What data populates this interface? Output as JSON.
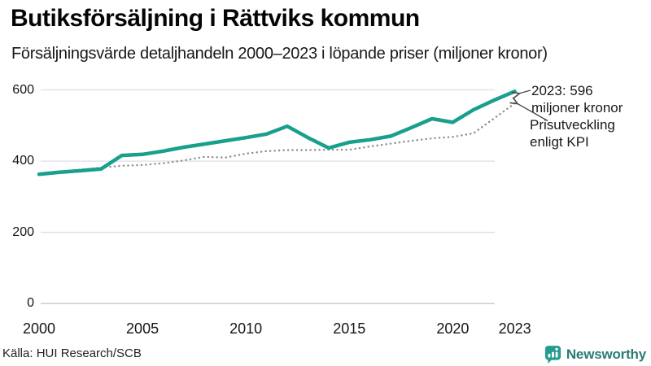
{
  "header": {
    "title": "Butiksförsäljning i Rättviks kommun",
    "subtitle": "Försäljningsvärde detaljhandeln 2000–2023 i löpande priser (miljoner kronor)"
  },
  "chart_data": {
    "type": "line",
    "title": "Butiksförsäljning i Rättviks kommun",
    "subtitle": "Försäljningsvärde detaljhandeln 2000–2023 i löpande priser (miljoner kronor)",
    "x": [
      2000,
      2001,
      2002,
      2003,
      2004,
      2005,
      2006,
      2007,
      2008,
      2009,
      2010,
      2011,
      2012,
      2013,
      2014,
      2015,
      2016,
      2017,
      2018,
      2019,
      2020,
      2021,
      2022,
      2023
    ],
    "series": [
      {
        "name": "Försäljningsvärde i löpande priser",
        "style": "solid",
        "color": "#18a08d",
        "values": [
          363,
          369,
          373,
          378,
          416,
          419,
          428,
          439,
          448,
          457,
          466,
          476,
          498,
          466,
          437,
          453,
          460,
          470,
          494,
          519,
          509,
          544,
          571,
          596
        ]
      },
      {
        "name": "Prisutveckling enligt KPI",
        "style": "dotted",
        "color": "#8a8a8a",
        "values": [
          363,
          370,
          376,
          382,
          387,
          389,
          394,
          402,
          412,
          410,
          421,
          428,
          431,
          431,
          432,
          432,
          441,
          449,
          457,
          464,
          468,
          478,
          520,
          562
        ]
      }
    ],
    "xticks": [
      2000,
      2005,
      2010,
      2015,
      2020,
      2023
    ],
    "yticks": [
      0,
      200,
      400,
      600
    ],
    "ylim": [
      0,
      640
    ],
    "xlabel": "",
    "ylabel": "",
    "grid": "horizontal gridlines at y ticks",
    "legend_position": "none (direct annotations on chart)",
    "end_value_2023": 596
  },
  "annotations": {
    "value_label": [
      "2023: 596",
      "miljoner kronor"
    ],
    "kpi_label": [
      "Prisutveckling",
      "enligt KPI"
    ]
  },
  "footer": {
    "source": "Källa: HUI Research/SCB",
    "brand": "Newsworthy"
  },
  "colors": {
    "line": "#18a08d",
    "kpi_dotted": "#8a8a8a",
    "gridline": "#dddee6",
    "zero_axis": "#c9cad2",
    "arrow": "#4a4a4a",
    "brand_icon": "#259c8f",
    "brand_text": "#2b7a74"
  }
}
